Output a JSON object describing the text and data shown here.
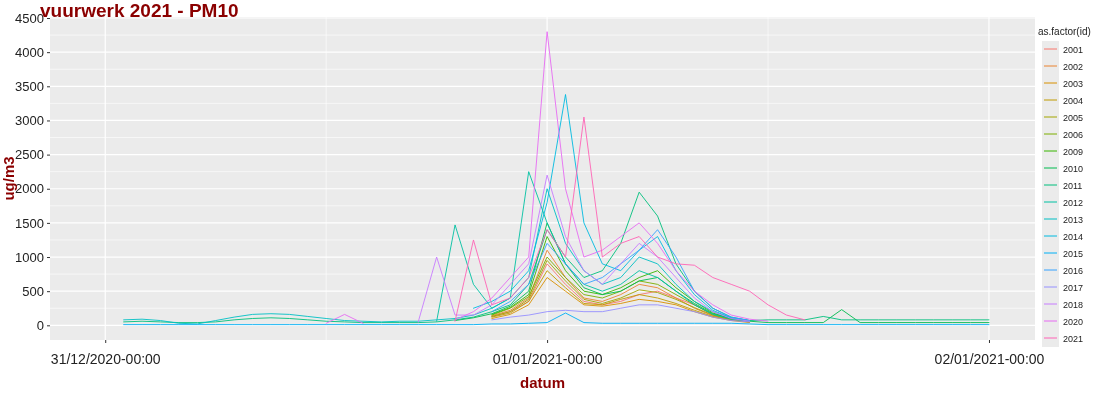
{
  "chart_data": {
    "type": "line",
    "title": "vuurwerk 2021 - PM10",
    "xlabel": "datum",
    "ylabel": "ug/m3",
    "legend_title": "as.factor(id)",
    "legend": "right",
    "grid": true,
    "x": [
      "2020-12-31T01:00",
      "2020-12-31T02:00",
      "2020-12-31T03:00",
      "2020-12-31T04:00",
      "2020-12-31T05:00",
      "2020-12-31T06:00",
      "2020-12-31T07:00",
      "2020-12-31T08:00",
      "2020-12-31T09:00",
      "2020-12-31T10:00",
      "2020-12-31T11:00",
      "2020-12-31T12:00",
      "2020-12-31T13:00",
      "2020-12-31T14:00",
      "2020-12-31T15:00",
      "2020-12-31T16:00",
      "2020-12-31T17:00",
      "2020-12-31T18:00",
      "2020-12-31T19:00",
      "2020-12-31T20:00",
      "2020-12-31T21:00",
      "2020-12-31T22:00",
      "2020-12-31T23:00",
      "2021-01-01T00:00",
      "2021-01-01T01:00",
      "2021-01-01T02:00",
      "2021-01-01T03:00",
      "2021-01-01T04:00",
      "2021-01-01T05:00",
      "2021-01-01T06:00",
      "2021-01-01T07:00",
      "2021-01-01T08:00",
      "2021-01-01T09:00",
      "2021-01-01T10:00",
      "2021-01-01T11:00",
      "2021-01-01T12:00",
      "2021-01-01T13:00",
      "2021-01-01T14:00",
      "2021-01-01T15:00",
      "2021-01-01T16:00",
      "2021-01-01T17:00",
      "2021-01-01T18:00",
      "2021-01-01T19:00",
      "2021-01-01T20:00",
      "2021-01-01T21:00",
      "2021-01-01T22:00",
      "2021-01-01T23:00",
      "2021-01-02T00:00"
    ],
    "xlim": [
      "2020-12-30T21:00",
      "2021-01-02T02:30"
    ],
    "xticks": [
      {
        "value": "2020-12-31T00:00",
        "label": "31/12/2020-00:00"
      },
      {
        "value": "2021-01-01T00:00",
        "label": "01/01/2021-00:00"
      },
      {
        "value": "2021-01-02T00:00",
        "label": "02/01/2021-00:00"
      }
    ],
    "ylim": [
      -215,
      4515
    ],
    "yticks": [
      0,
      500,
      1000,
      1500,
      2000,
      2500,
      3000,
      3500,
      4000,
      4500
    ],
    "series": [
      {
        "name": "2001",
        "color": "#f8766d",
        "values": [
          null,
          null,
          null,
          null,
          null,
          null,
          null,
          null,
          null,
          null,
          null,
          null,
          null,
          null,
          null,
          null,
          null,
          null,
          null,
          null,
          130,
          200,
          350,
          900,
          600,
          350,
          300,
          350,
          450,
          500,
          400,
          300,
          150,
          80,
          50,
          null,
          null,
          null,
          null,
          null,
          null,
          null,
          null,
          null,
          null,
          null,
          null,
          null
        ]
      },
      {
        "name": "2002",
        "color": "#ea8331",
        "values": [
          null,
          null,
          null,
          null,
          null,
          null,
          null,
          null,
          null,
          null,
          null,
          null,
          null,
          null,
          null,
          null,
          null,
          null,
          null,
          null,
          140,
          220,
          400,
          1100,
          700,
          400,
          350,
          450,
          600,
          550,
          400,
          250,
          140,
          90,
          60,
          null,
          null,
          null,
          null,
          null,
          null,
          null,
          null,
          null,
          null,
          null,
          null,
          null
        ]
      },
      {
        "name": "2003",
        "color": "#d89000",
        "values": [
          null,
          null,
          null,
          null,
          null,
          null,
          null,
          null,
          null,
          null,
          null,
          null,
          null,
          null,
          null,
          null,
          null,
          null,
          null,
          null,
          100,
          160,
          300,
          700,
          500,
          300,
          280,
          320,
          380,
          350,
          300,
          200,
          120,
          70,
          40,
          null,
          null,
          null,
          null,
          null,
          null,
          null,
          null,
          null,
          null,
          null,
          null,
          null
        ]
      },
      {
        "name": "2004",
        "color": "#c09b00",
        "values": [
          null,
          null,
          null,
          null,
          null,
          null,
          null,
          null,
          null,
          null,
          null,
          null,
          null,
          null,
          null,
          null,
          null,
          null,
          null,
          null,
          120,
          180,
          350,
          800,
          550,
          320,
          300,
          380,
          450,
          400,
          320,
          220,
          130,
          80,
          50,
          null,
          null,
          null,
          null,
          null,
          null,
          null,
          null,
          null,
          null,
          null,
          null,
          null
        ]
      },
      {
        "name": "2005",
        "color": "#a3a500",
        "values": [
          null,
          null,
          null,
          null,
          null,
          null,
          null,
          null,
          null,
          null,
          null,
          null,
          null,
          null,
          null,
          null,
          null,
          null,
          null,
          null,
          130,
          200,
          380,
          950,
          650,
          380,
          320,
          400,
          520,
          480,
          380,
          260,
          150,
          90,
          60,
          null,
          null,
          null,
          null,
          null,
          null,
          null,
          null,
          null,
          null,
          null,
          null,
          null
        ]
      },
      {
        "name": "2006",
        "color": "#7cae00",
        "values": [
          null,
          null,
          null,
          null,
          null,
          null,
          null,
          null,
          null,
          null,
          null,
          null,
          null,
          null,
          null,
          null,
          null,
          null,
          null,
          null,
          150,
          250,
          420,
          1000,
          700,
          450,
          400,
          500,
          650,
          600,
          450,
          300,
          160,
          90,
          60,
          null,
          null,
          null,
          null,
          null,
          null,
          null,
          null,
          null,
          null,
          null,
          null,
          null
        ]
      },
      {
        "name": "2009",
        "color": "#39b600",
        "values": [
          null,
          null,
          null,
          null,
          null,
          null,
          null,
          null,
          null,
          null,
          null,
          null,
          null,
          null,
          null,
          null,
          null,
          null,
          null,
          null,
          160,
          260,
          450,
          1300,
          800,
          500,
          450,
          550,
          700,
          800,
          550,
          350,
          180,
          100,
          60,
          null,
          null,
          null,
          null,
          null,
          null,
          null,
          null,
          null,
          null,
          null,
          null,
          null
        ]
      },
      {
        "name": "2010",
        "color": "#00bb4e",
        "values": [
          null,
          null,
          null,
          null,
          null,
          null,
          null,
          null,
          null,
          null,
          null,
          null,
          null,
          null,
          null,
          null,
          null,
          null,
          70,
          110,
          170,
          280,
          500,
          1500,
          900,
          550,
          450,
          500,
          650,
          700,
          500,
          320,
          170,
          100,
          60,
          40,
          40,
          40,
          40,
          230,
          40,
          40,
          40,
          40,
          40,
          40,
          40,
          40
        ]
      },
      {
        "name": "2011",
        "color": "#00bf7d",
        "values": [
          50,
          60,
          50,
          40,
          40,
          50,
          80,
          100,
          110,
          100,
          80,
          60,
          50,
          40,
          40,
          40,
          40,
          50,
          80,
          120,
          200,
          300,
          600,
          1400,
          1000,
          700,
          800,
          1200,
          1950,
          1600,
          900,
          500,
          250,
          120,
          70,
          80,
          80,
          80,
          130,
          80,
          80,
          80,
          80,
          80,
          80,
          80,
          80,
          80
        ]
      },
      {
        "name": "2012",
        "color": "#00c1a3",
        "values": [
          null,
          null,
          null,
          null,
          null,
          null,
          null,
          null,
          null,
          null,
          null,
          null,
          null,
          null,
          null,
          null,
          null,
          60,
          1470,
          600,
          250,
          400,
          2250,
          1500,
          900,
          600,
          500,
          600,
          800,
          700,
          500,
          300,
          160,
          90,
          60,
          null,
          null,
          null,
          null,
          null,
          null,
          null,
          null,
          null,
          null,
          null,
          null,
          null
        ]
      },
      {
        "name": "2013",
        "color": "#00bfc4",
        "values": [
          80,
          90,
          70,
          30,
          20,
          70,
          120,
          160,
          170,
          160,
          130,
          100,
          70,
          60,
          50,
          60,
          60,
          80,
          100,
          150,
          250,
          400,
          700,
          2000,
          1200,
          800,
          600,
          700,
          1000,
          900,
          600,
          350,
          200,
          110,
          70,
          null,
          null,
          null,
          null,
          null,
          null,
          null,
          null,
          null,
          null,
          null,
          null,
          null
        ]
      },
      {
        "name": "2014",
        "color": "#00bae0",
        "values": [
          null,
          null,
          null,
          null,
          null,
          null,
          null,
          null,
          null,
          null,
          null,
          null,
          null,
          null,
          null,
          null,
          null,
          null,
          null,
          250,
          350,
          500,
          800,
          1800,
          3380,
          1500,
          900,
          800,
          1100,
          1300,
          800,
          450,
          220,
          110,
          70,
          null,
          null,
          null,
          null,
          null,
          null,
          null,
          null,
          null,
          null,
          null,
          null,
          null
        ]
      },
      {
        "name": "2015",
        "color": "#00b0f6",
        "values": [
          10,
          10,
          10,
          10,
          10,
          10,
          10,
          10,
          10,
          10,
          10,
          10,
          10,
          10,
          10,
          10,
          10,
          10,
          10,
          10,
          20,
          20,
          30,
          40,
          180,
          40,
          30,
          30,
          30,
          30,
          30,
          30,
          30,
          30,
          20,
          10,
          10,
          10,
          10,
          10,
          10,
          10,
          10,
          10,
          10,
          10,
          10,
          10
        ]
      },
      {
        "name": "2016",
        "color": "#35a2ff",
        "values": [
          null,
          null,
          null,
          null,
          null,
          null,
          null,
          null,
          null,
          null,
          null,
          null,
          null,
          null,
          null,
          null,
          null,
          null,
          null,
          null,
          200,
          350,
          600,
          1200,
          900,
          600,
          700,
          900,
          1100,
          1400,
          1000,
          500,
          250,
          120,
          70,
          null,
          null,
          null,
          null,
          null,
          null,
          null,
          null,
          null,
          null,
          null,
          null,
          null
        ]
      },
      {
        "name": "2017",
        "color": "#9590ff",
        "values": [
          null,
          null,
          null,
          null,
          null,
          null,
          null,
          null,
          null,
          null,
          null,
          null,
          null,
          null,
          null,
          null,
          null,
          null,
          null,
          null,
          80,
          120,
          150,
          200,
          220,
          200,
          200,
          250,
          300,
          300,
          250,
          200,
          120,
          70,
          50,
          null,
          null,
          null,
          null,
          null,
          null,
          null,
          null,
          null,
          null,
          null,
          null,
          null
        ]
      },
      {
        "name": "2018",
        "color": "#c77cff",
        "values": [
          null,
          null,
          null,
          null,
          null,
          null,
          null,
          null,
          null,
          null,
          null,
          null,
          null,
          null,
          null,
          null,
          50,
          1000,
          150,
          150,
          300,
          600,
          900,
          2200,
          1300,
          800,
          600,
          900,
          1200,
          1000,
          700,
          400,
          200,
          100,
          60,
          null,
          null,
          null,
          null,
          null,
          null,
          null,
          null,
          null,
          null,
          null,
          null,
          null
        ]
      },
      {
        "name": "2020",
        "color": "#e76bf3",
        "values": [
          null,
          null,
          null,
          null,
          null,
          null,
          null,
          null,
          null,
          null,
          null,
          30,
          160,
          30,
          null,
          null,
          null,
          null,
          80,
          200,
          400,
          700,
          1000,
          4300,
          2000,
          1000,
          1100,
          1300,
          1500,
          1200,
          800,
          500,
          300,
          150,
          90,
          60,
          null,
          null,
          null,
          null,
          null,
          null,
          null,
          null,
          null,
          null,
          null,
          null
        ]
      },
      {
        "name": "2021",
        "color": "#ff63b6",
        "values": [
          null,
          null,
          null,
          null,
          null,
          null,
          null,
          null,
          null,
          null,
          null,
          null,
          null,
          null,
          null,
          null,
          null,
          null,
          60,
          1250,
          300,
          400,
          700,
          1400,
          1000,
          3050,
          1000,
          1200,
          1300,
          1000,
          900,
          880,
          700,
          600,
          500,
          300,
          150,
          80,
          null,
          null,
          null,
          null,
          null,
          null,
          null,
          null,
          null,
          null
        ]
      }
    ]
  }
}
